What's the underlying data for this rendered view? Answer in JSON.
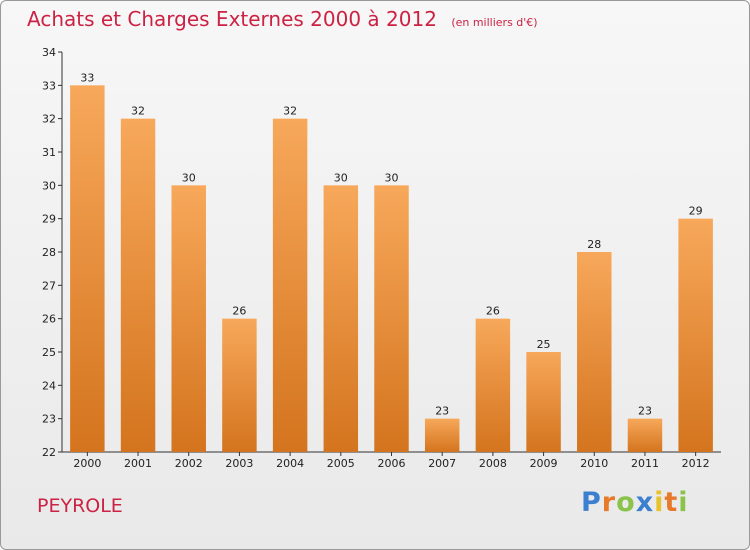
{
  "title": "Achats et Charges Externes 2000 à 2012",
  "subtitle": "(en milliers d'€)",
  "location": "PEYROLE",
  "brand": {
    "text": "Proxiti",
    "letters": [
      {
        "ch": "P",
        "color": "#3a7fd0"
      },
      {
        "ch": "r",
        "color": "#e8792a"
      },
      {
        "ch": "o",
        "color": "#8bc34a"
      },
      {
        "ch": "x",
        "color": "#3a7fd0"
      },
      {
        "ch": "i",
        "color": "#e8c22a"
      },
      {
        "ch": "t",
        "color": "#e8792a"
      },
      {
        "ch": "i",
        "color": "#8bc34a"
      }
    ]
  },
  "colors": {
    "title": "#cc2244",
    "bar_top": "#f7a85a",
    "bar_bottom": "#d4741e"
  },
  "chart_data": {
    "type": "bar",
    "categories": [
      "2000",
      "2001",
      "2002",
      "2003",
      "2004",
      "2005",
      "2006",
      "2007",
      "2008",
      "2009",
      "2010",
      "2011",
      "2012"
    ],
    "values": [
      33,
      32,
      30,
      26,
      32,
      30,
      30,
      23,
      26,
      25,
      28,
      23,
      29
    ],
    "ylim": [
      22,
      34
    ],
    "yticks": [
      22,
      23,
      24,
      25,
      26,
      27,
      28,
      29,
      30,
      31,
      32,
      33,
      34
    ],
    "grid": false,
    "xlabel": "",
    "ylabel": ""
  }
}
